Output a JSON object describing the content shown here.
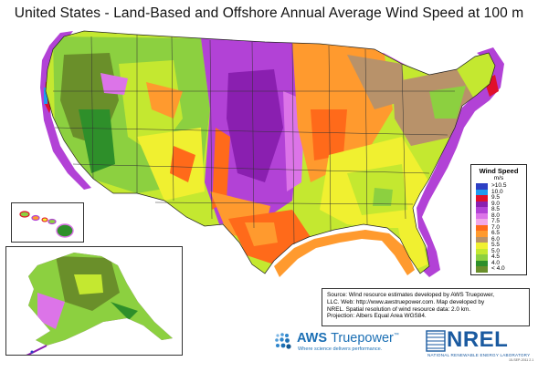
{
  "title": "United States - Land-Based and Offshore Annual Average Wind Speed at 100 m",
  "legend": {
    "title": "Wind Speed",
    "unit": "m/s",
    "items": [
      {
        "label": ">10.5",
        "color": "#2d3fc4"
      },
      {
        "label": "10.0",
        "color": "#1f9af0"
      },
      {
        "label": "9.5",
        "color": "#e0102a"
      },
      {
        "label": "9.0",
        "color": "#8a1fb0"
      },
      {
        "label": "8.5",
        "color": "#b242d6"
      },
      {
        "label": "8.0",
        "color": "#dc74e8"
      },
      {
        "label": "7.5",
        "color": "#f2a8e8"
      },
      {
        "label": "7.0",
        "color": "#ff6a1a"
      },
      {
        "label": "6.5",
        "color": "#ff9a2e"
      },
      {
        "label": "6.0",
        "color": "#b8926a"
      },
      {
        "label": "5.5",
        "color": "#f0f030"
      },
      {
        "label": "5.0",
        "color": "#c4e830"
      },
      {
        "label": "4.5",
        "color": "#8cd040"
      },
      {
        "label": "4.0",
        "color": "#2e8f2a"
      },
      {
        "label": "< 4.0",
        "color": "#6a8f2a"
      }
    ]
  },
  "source": {
    "lines": [
      "Source:  Wind resource estimates developed by AWS Truepower,",
      "LLC.  Web: http://www.awstruepower.com. Map developed by",
      "NREL.  Spatial resolution of wind resource data: 2.0 km.",
      "Projection: Albers Equal Area WGS84."
    ]
  },
  "logos": {
    "aws_name_a": "AWS ",
    "aws_name_b": "Truepower",
    "aws_tm": "™",
    "aws_tagline": "Where science delivers performance.",
    "nrel_name": "NREL",
    "nrel_sub": "NATIONAL RENEWABLE ENERGY LABORATORY"
  },
  "doc_id": "15-SEP-2011 2.1"
}
